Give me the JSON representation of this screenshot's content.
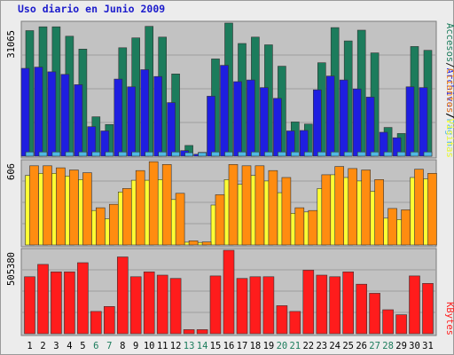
{
  "chart_data": {
    "type": "bar",
    "title": "Uso diario en Junio 2009",
    "categories": [
      "1",
      "2",
      "3",
      "4",
      "5",
      "6",
      "7",
      "8",
      "9",
      "10",
      "11",
      "12",
      "13",
      "14",
      "15",
      "16",
      "17",
      "18",
      "19",
      "20",
      "21",
      "22",
      "23",
      "24",
      "25",
      "26",
      "27",
      "28",
      "29",
      "30",
      "31"
    ],
    "weekend_days": [
      "6",
      "7",
      "13",
      "14",
      "20",
      "21",
      "27",
      "28"
    ],
    "panels": [
      {
        "id": "top",
        "ymax_label": "31065",
        "series": [
          {
            "name": "Accesos",
            "color": "#1c7c5c",
            "values": [
              29300,
              30200,
              30200,
              28000,
              25000,
              9200,
              7400,
              25300,
              27600,
              30300,
              27800,
              19200,
              2500,
              900,
              22700,
              31500,
              26300,
              27800,
              26000,
              21000,
              8000,
              7500,
              21800,
              30000,
              26900,
              29400,
              24100,
              6700,
              5300,
              25600,
              24700
            ]
          },
          {
            "name": "Archivos",
            "color": "#1e1ee0",
            "values": [
              20500,
              20800,
              19700,
              19100,
              16700,
              6900,
              5900,
              18000,
              16200,
              20200,
              18600,
              12500,
              1300,
              450,
              14000,
              21200,
              17400,
              17800,
              16000,
              13500,
              5900,
              6000,
              15500,
              18700,
              17800,
              15700,
              13800,
              5600,
              4300,
              16200,
              16000
            ]
          },
          {
            "name": "Páginas",
            "color": "#4fb9e4",
            "values": [
              1000,
              1000,
              1000,
              1000,
              1000,
              1000,
              1000,
              1000,
              1000,
              1000,
              1000,
              1000,
              100,
              100,
              1000,
              1000,
              1000,
              1000,
              1000,
              1000,
              1000,
              1000,
              1000,
              1000,
              1000,
              1000,
              1000,
              1000,
              1000,
              1000,
              1000
            ]
          }
        ]
      },
      {
        "id": "middle",
        "ymax_label": "606",
        "series": [
          {
            "name": "Visitas",
            "color": "#ffff33",
            "values": [
              505,
              520,
              520,
              500,
              475,
              250,
              190,
              385,
              470,
              470,
              475,
              330,
              20,
              18,
              290,
              475,
              440,
              505,
              465,
              380,
              230,
              240,
              410,
              510,
              490,
              465,
              390,
              195,
              185,
              490,
              480
            ]
          },
          {
            "name": "Clientes",
            "color": "#ff8c10",
            "values": [
              575,
              575,
              560,
              545,
              525,
              270,
              295,
              410,
              540,
              605,
              585,
              375,
              30,
              22,
              365,
              585,
              575,
              575,
              540,
              490,
              270,
              250,
              510,
              570,
              555,
              545,
              475,
              265,
              255,
              550,
              520
            ]
          }
        ]
      },
      {
        "id": "bottom",
        "ymax_label": "505380",
        "series": [
          {
            "name": "KBytes",
            "color": "#ff1c1c",
            "values": [
              345000,
              420000,
              375000,
              375000,
              430000,
              135000,
              165000,
              465000,
              345000,
              375000,
              355000,
              335000,
              25000,
              25000,
              350000,
              535000,
              335000,
              345000,
              345000,
              170000,
              135000,
              385000,
              355000,
              345000,
              375000,
              300000,
              245000,
              145000,
              115000,
              350000,
              305000
            ]
          }
        ]
      }
    ],
    "right_labels": {
      "top": [
        "Accesos",
        "/",
        "Archivos",
        "/",
        "Páginas"
      ],
      "middle": [
        "Clientes",
        "/",
        "Visitas"
      ],
      "bottom": [
        "KBytes"
      ]
    }
  }
}
